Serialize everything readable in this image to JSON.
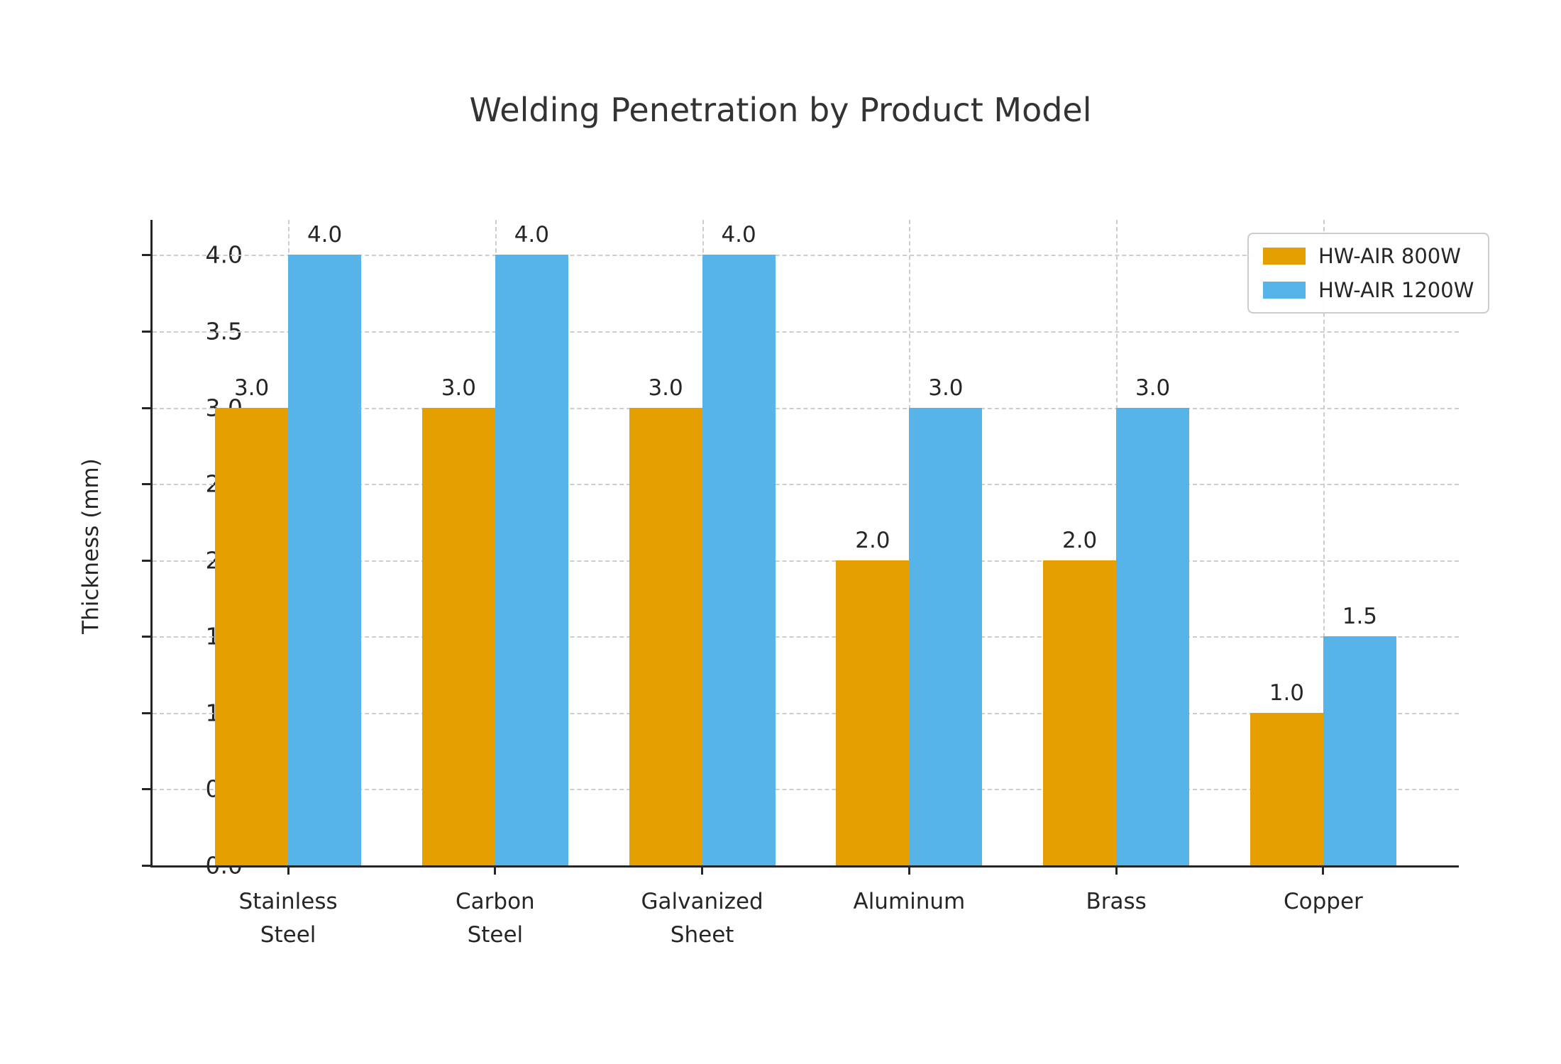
{
  "chart_data": {
    "type": "bar",
    "title": "Welding Penetration by Product Model",
    "ylabel": "Thickness (mm)",
    "xlabel": "",
    "categories": [
      "Stainless\nSteel",
      "Carbon\nSteel",
      "Galvanized\nSheet",
      "Aluminum",
      "Brass",
      "Copper"
    ],
    "series": [
      {
        "name": "HW-AIR 800W",
        "color": "#E69F00",
        "values": [
          3.0,
          3.0,
          3.0,
          2.0,
          2.0,
          1.0
        ],
        "data_labels": [
          "3.0",
          "3.0",
          "3.0",
          "2.0",
          "2.0",
          "1.0"
        ]
      },
      {
        "name": "HW-AIR 1200W",
        "color": "#56B4E9",
        "values": [
          4.0,
          4.0,
          4.0,
          3.0,
          3.0,
          1.5
        ],
        "data_labels": [
          "4.0",
          "4.0",
          "4.0",
          "3.0",
          "3.0",
          "1.5"
        ]
      }
    ],
    "yticks": [
      0.0,
      0.5,
      1.0,
      1.5,
      2.0,
      2.5,
      3.0,
      3.5,
      4.0
    ],
    "ytick_labels": [
      "0.0",
      "0.5",
      "1.0",
      "1.5",
      "2.0",
      "2.5",
      "3.0",
      "3.5",
      "4.0"
    ],
    "ylim": [
      0,
      4.23
    ],
    "grid": {
      "horizontal": true,
      "vertical": true,
      "style": "dashed",
      "color": "#cdcdcd",
      "axisbelow": true
    },
    "legend": {
      "position": "upper-right"
    }
  },
  "colors": {
    "background": "#ffffff",
    "title_text": "#333333",
    "axis_text": "#262626",
    "spine": "#262626",
    "grid": "#cdcdcd",
    "legend_border": "#cccccc"
  }
}
